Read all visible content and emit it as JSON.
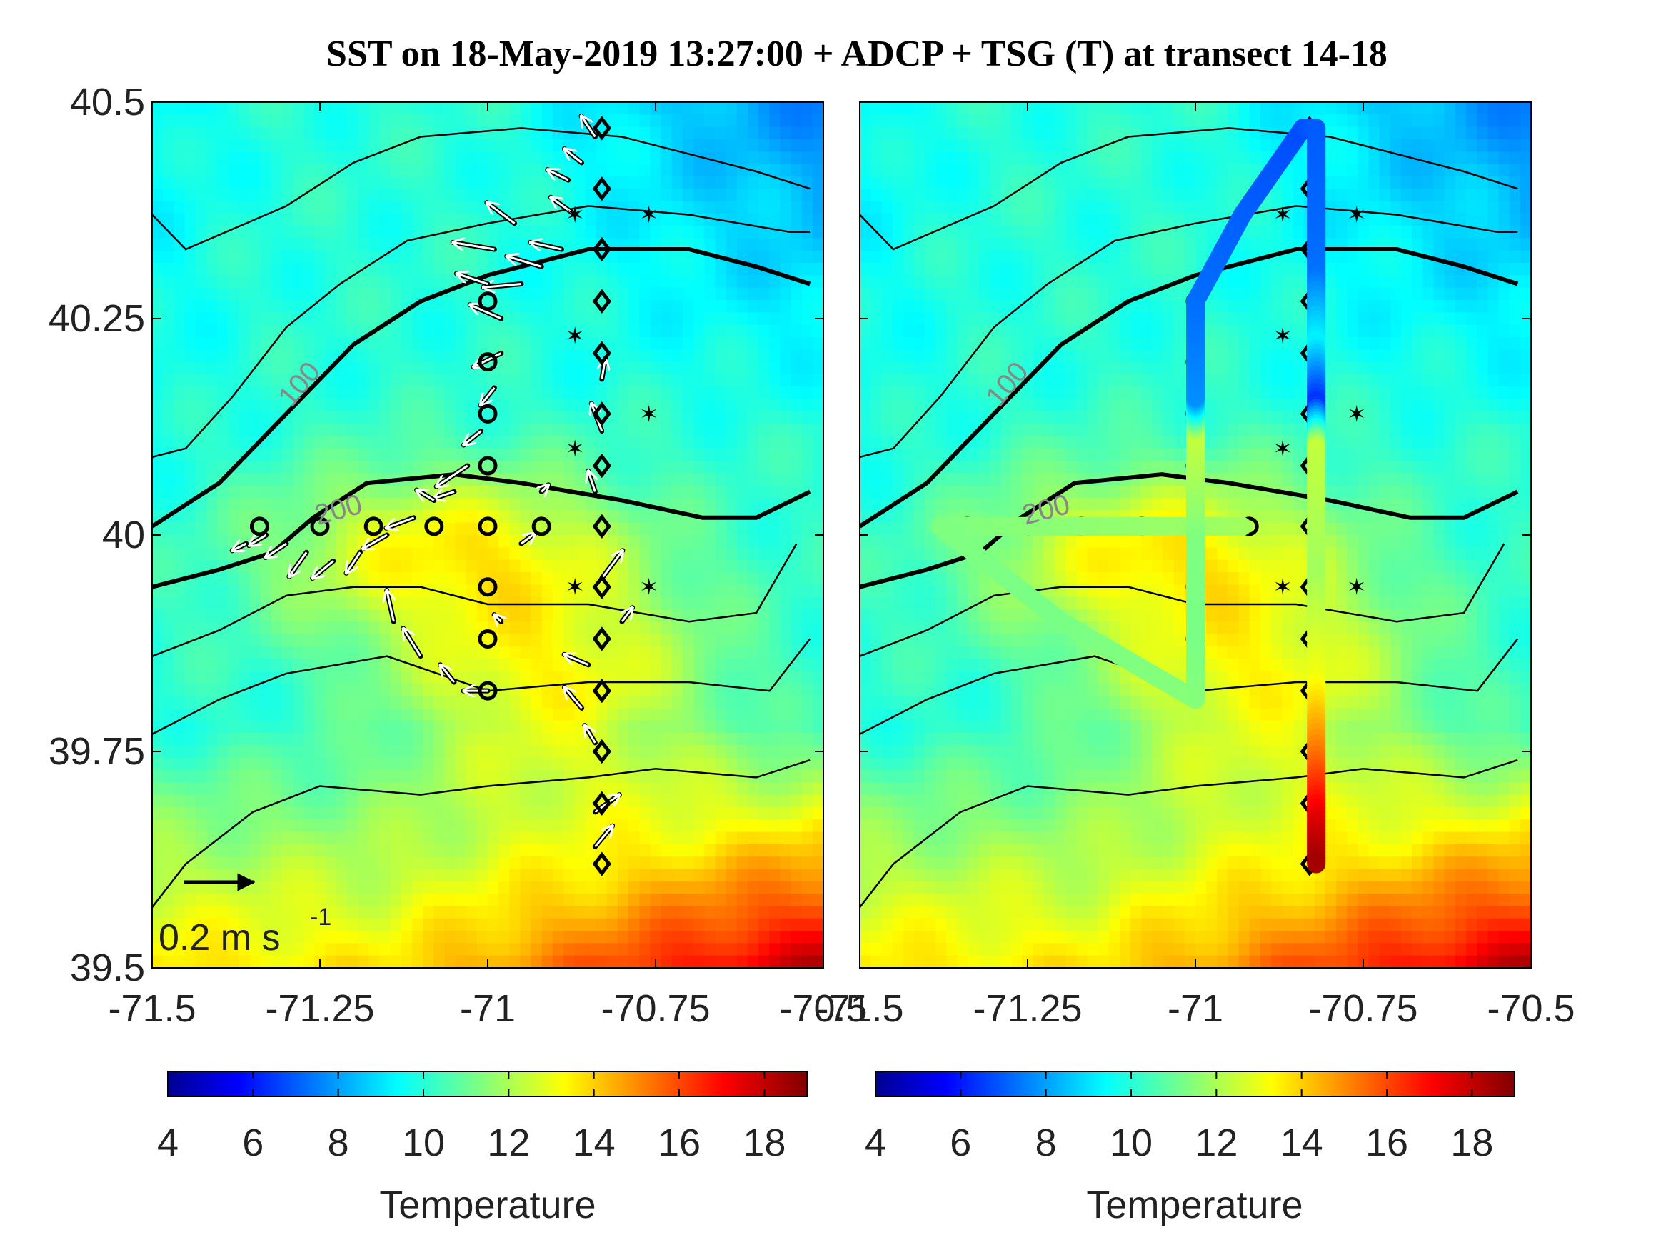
{
  "chart_data": [
    {
      "type": "heatmap",
      "panel": "left",
      "title": "SST on 18-May-2019 13:27:00 + ADCP + TSG (T) at transect 14-18",
      "xlim": [
        -71.5,
        -70.5
      ],
      "ylim": [
        39.5,
        40.5
      ],
      "x_ticks": [
        "-71.5",
        "-71.25",
        "-71",
        "-70.75",
        "-70.5"
      ],
      "y_ticks": [
        "39.5",
        "39.75",
        "40",
        "40.25",
        "40.5"
      ],
      "colorbar": {
        "label": "Temperature",
        "range": [
          4,
          19
        ],
        "ticks": [
          "4",
          "6",
          "8",
          "10",
          "12",
          "14",
          "16",
          "18"
        ]
      },
      "contour_labels": [
        "100",
        "200"
      ],
      "scale_vector_label": {
        "text": "0.2 m s",
        "exponent": "-1"
      },
      "stations": {
        "circles": [
          [
            -71.34,
            40.01
          ],
          [
            -71.25,
            40.01
          ],
          [
            -71.17,
            40.01
          ],
          [
            -71.08,
            40.01
          ],
          [
            -71.0,
            40.01
          ],
          [
            -70.92,
            40.01
          ],
          [
            -71.0,
            40.27
          ],
          [
            -71.0,
            40.2
          ],
          [
            -71.0,
            40.14
          ],
          [
            -71.0,
            40.08
          ],
          [
            -71.0,
            39.94
          ],
          [
            -71.0,
            39.88
          ],
          [
            -71.0,
            39.82
          ]
        ],
        "diamonds": [
          [
            -70.83,
            40.47
          ],
          [
            -70.83,
            40.4
          ],
          [
            -70.83,
            40.33
          ],
          [
            -70.83,
            40.27
          ],
          [
            -70.83,
            40.21
          ],
          [
            -70.83,
            40.14
          ],
          [
            -70.83,
            40.08
          ],
          [
            -70.83,
            40.01
          ],
          [
            -70.83,
            39.94
          ],
          [
            -70.83,
            39.88
          ],
          [
            -70.83,
            39.82
          ],
          [
            -70.83,
            39.75
          ],
          [
            -70.83,
            39.69
          ],
          [
            -70.83,
            39.62
          ]
        ],
        "stars": [
          [
            -70.87,
            40.37
          ],
          [
            -70.76,
            40.37
          ],
          [
            -70.87,
            40.23
          ],
          [
            -70.76,
            40.14
          ],
          [
            -70.87,
            40.1
          ],
          [
            -70.87,
            39.94
          ],
          [
            -70.76,
            39.94
          ]
        ]
      },
      "vectors_m_per_s": [
        [
          -70.84,
          40.46,
          -0.04,
          0.06
        ],
        [
          -70.86,
          40.43,
          -0.05,
          0.04
        ],
        [
          -70.88,
          40.41,
          -0.06,
          0.03
        ],
        [
          -70.87,
          40.37,
          -0.07,
          0.05
        ],
        [
          -70.89,
          40.33,
          -0.09,
          0.02
        ],
        [
          -70.92,
          40.31,
          -0.1,
          0.03
        ],
        [
          -70.95,
          40.29,
          -0.11,
          -0.01
        ],
        [
          -70.98,
          40.25,
          -0.09,
          0.04
        ],
        [
          -70.96,
          40.36,
          -0.08,
          0.06
        ],
        [
          -70.99,
          40.33,
          -0.12,
          0.02
        ],
        [
          -71.0,
          40.29,
          -0.09,
          0.03
        ],
        [
          -70.98,
          40.21,
          -0.08,
          -0.04
        ],
        [
          -70.99,
          40.17,
          -0.04,
          -0.05
        ],
        [
          -71.01,
          40.12,
          -0.05,
          -0.04
        ],
        [
          -71.03,
          40.08,
          -0.09,
          -0.06
        ],
        [
          -71.05,
          40.05,
          -0.06,
          -0.02
        ],
        [
          -71.08,
          40.04,
          -0.05,
          0.03
        ],
        [
          -71.11,
          40.02,
          -0.08,
          -0.03
        ],
        [
          -71.15,
          40.0,
          -0.07,
          -0.04
        ],
        [
          -71.19,
          39.98,
          -0.04,
          -0.06
        ],
        [
          -71.23,
          39.97,
          -0.06,
          -0.05
        ],
        [
          -71.27,
          39.98,
          -0.05,
          -0.07
        ],
        [
          -71.3,
          39.99,
          -0.06,
          -0.04
        ],
        [
          -71.33,
          40.0,
          -0.05,
          -0.03
        ],
        [
          -71.36,
          39.99,
          -0.04,
          -0.02
        ],
        [
          -71.14,
          39.9,
          -0.02,
          0.09
        ],
        [
          -71.1,
          39.86,
          -0.05,
          0.08
        ],
        [
          -71.05,
          39.83,
          -0.04,
          0.05
        ],
        [
          -71.0,
          39.82,
          -0.07,
          0.0
        ],
        [
          -70.98,
          39.9,
          -0.02,
          0.02
        ],
        [
          -70.95,
          39.99,
          0.04,
          0.03
        ],
        [
          -70.92,
          40.05,
          0.02,
          0.02
        ],
        [
          -70.83,
          39.95,
          0.06,
          0.08
        ],
        [
          -70.8,
          39.9,
          0.03,
          0.04
        ],
        [
          -70.85,
          39.85,
          -0.07,
          0.03
        ],
        [
          -70.86,
          39.8,
          -0.05,
          0.06
        ],
        [
          -70.84,
          39.76,
          -0.03,
          0.05
        ],
        [
          -70.84,
          39.68,
          0.07,
          0.05
        ],
        [
          -70.84,
          39.64,
          0.05,
          0.06
        ],
        [
          -70.83,
          40.12,
          -0.03,
          0.08
        ],
        [
          -70.83,
          40.18,
          0.01,
          0.06
        ],
        [
          -70.84,
          40.05,
          -0.02,
          0.06
        ]
      ]
    },
    {
      "type": "heatmap",
      "panel": "right",
      "xlim": [
        -71.5,
        -70.5
      ],
      "ylim": [
        39.5,
        40.5
      ],
      "x_ticks": [
        "-71.5",
        "-71.25",
        "-71",
        "-70.75",
        "-70.5"
      ],
      "y_ticks": [
        "39.5",
        "39.75",
        "40",
        "40.25",
        "40.5"
      ],
      "colorbar": {
        "label": "Temperature",
        "range": [
          4,
          19
        ],
        "ticks": [
          "4",
          "6",
          "8",
          "10",
          "12",
          "14",
          "16",
          "18"
        ]
      },
      "contour_labels": [
        "100",
        "200"
      ],
      "tsg_track": [
        {
          "lon": -71.38,
          "lat": 40.01,
          "temp": 11.5
        },
        {
          "lon": -71.2,
          "lat": 40.01,
          "temp": 11.6
        },
        {
          "lon": -71.05,
          "lat": 40.01,
          "temp": 11.8
        },
        {
          "lon": -70.93,
          "lat": 40.01,
          "temp": 12.0
        },
        {
          "lon": -71.38,
          "lat": 40.01,
          "temp": 11.5
        },
        {
          "lon": -71.2,
          "lat": 39.9,
          "temp": 11.4
        },
        {
          "lon": -71.0,
          "lat": 39.81,
          "temp": 11.6
        },
        {
          "lon": -71.0,
          "lat": 39.9,
          "temp": 11.4
        },
        {
          "lon": -71.0,
          "lat": 40.01,
          "temp": 11.5
        },
        {
          "lon": -71.0,
          "lat": 40.12,
          "temp": 12.5
        },
        {
          "lon": -71.0,
          "lat": 40.16,
          "temp": 8.0
        },
        {
          "lon": -71.0,
          "lat": 40.27,
          "temp": 7.5
        },
        {
          "lon": -70.93,
          "lat": 40.37,
          "temp": 7.3
        },
        {
          "lon": -70.84,
          "lat": 40.47,
          "temp": 7.0
        },
        {
          "lon": -70.82,
          "lat": 40.47,
          "temp": 7.2
        },
        {
          "lon": -70.82,
          "lat": 40.3,
          "temp": 7.5
        },
        {
          "lon": -70.82,
          "lat": 40.22,
          "temp": 9.5
        },
        {
          "lon": -70.82,
          "lat": 40.15,
          "temp": 6.5
        },
        {
          "lon": -70.82,
          "lat": 40.1,
          "temp": 12.5
        },
        {
          "lon": -70.82,
          "lat": 39.95,
          "temp": 12.0
        },
        {
          "lon": -70.82,
          "lat": 39.83,
          "temp": 13.2
        },
        {
          "lon": -70.82,
          "lat": 39.74,
          "temp": 15.5
        },
        {
          "lon": -70.82,
          "lat": 39.67,
          "temp": 17.5
        },
        {
          "lon": -70.82,
          "lat": 39.62,
          "temp": 18.5
        }
      ]
    }
  ]
}
